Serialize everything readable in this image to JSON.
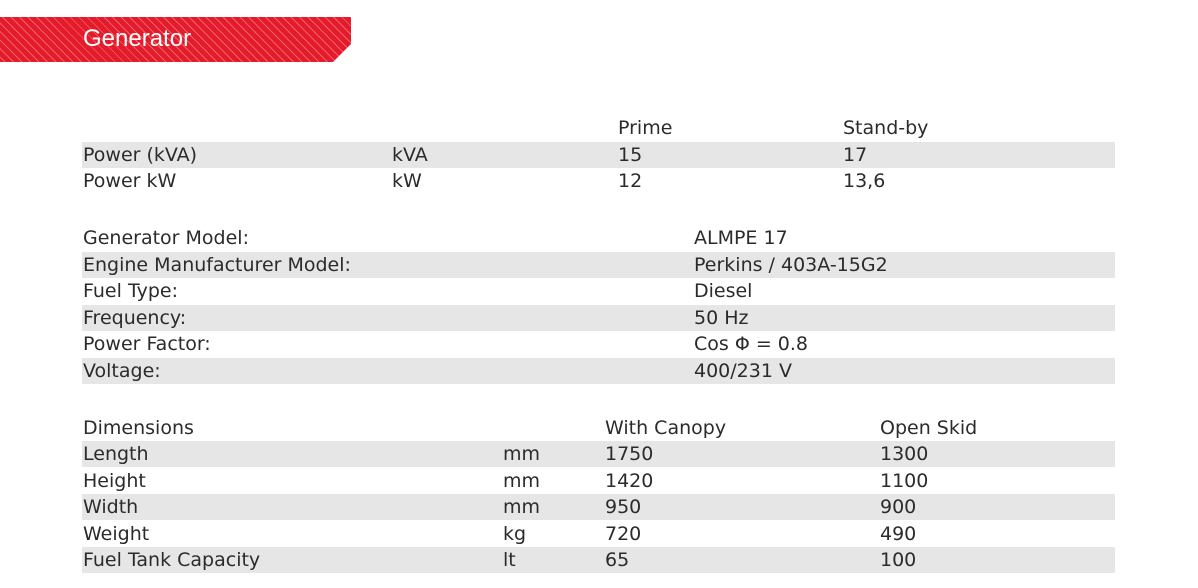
{
  "header": {
    "title": "Generator"
  },
  "power": {
    "columns": [
      "Prime",
      "Stand-by"
    ],
    "rows": [
      {
        "label": "Power (kVA)",
        "unit": "kVA",
        "prime": "15",
        "standby": "17"
      },
      {
        "label": "Power kW",
        "unit": "kW",
        "prime": "12",
        "standby": "13,6"
      }
    ]
  },
  "specs": [
    {
      "label": "Generator Model:",
      "value": "ALMPE 17"
    },
    {
      "label": "Engine Manufacturer Model:",
      "value": "Perkins / 403A-15G2"
    },
    {
      "label": "Fuel Type:",
      "value": "Diesel"
    },
    {
      "label": "Frequency:",
      "value": "50 Hz"
    },
    {
      "label": "Power Factor:",
      "value": "Cos Φ = 0.8"
    },
    {
      "label": "Voltage:",
      "value": "400/231 V"
    }
  ],
  "dimensions": {
    "title": "Dimensions",
    "columns": [
      "With Canopy",
      "Open Skid"
    ],
    "rows": [
      {
        "label": "Length",
        "unit": "mm",
        "canopy": "1750",
        "skid": "1300"
      },
      {
        "label": "Height",
        "unit": "mm",
        "canopy": "1420",
        "skid": "1100"
      },
      {
        "label": "Width",
        "unit": "mm",
        "canopy": "950",
        "skid": "900"
      },
      {
        "label": "Weight",
        "unit": "kg",
        "canopy": "720",
        "skid": "490"
      },
      {
        "label": "Fuel Tank Capacity",
        "unit": "lt",
        "canopy": "65",
        "skid": "100"
      }
    ]
  }
}
